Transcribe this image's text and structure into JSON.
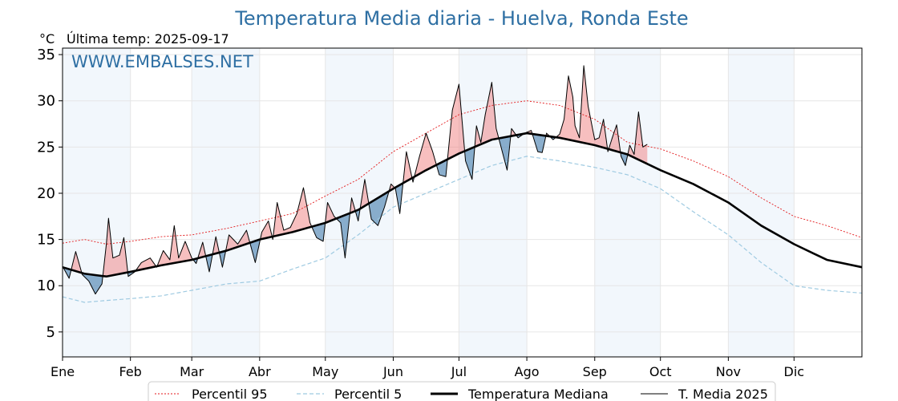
{
  "chart_data": {
    "type": "line",
    "title": "Temperatura Media diaria - Huelva, Ronda Este",
    "unit_label": "°C",
    "last_temp_label": "Última temp: 2025-09-17",
    "watermark": "WWW.EMBALSES.NET",
    "ylim": [
      2.3,
      35.7
    ],
    "yticks": [
      5,
      10,
      15,
      20,
      25,
      30,
      35
    ],
    "xlim": [
      0,
      365
    ],
    "months": [
      {
        "label": "Ene",
        "start": 0
      },
      {
        "label": "Feb",
        "start": 31
      },
      {
        "label": "Mar",
        "start": 59
      },
      {
        "label": "Abr",
        "start": 90
      },
      {
        "label": "May",
        "start": 120
      },
      {
        "label": "Jun",
        "start": 151
      },
      {
        "label": "Jul",
        "start": 181
      },
      {
        "label": "Ago",
        "start": 212
      },
      {
        "label": "Sep",
        "start": 243
      },
      {
        "label": "Oct",
        "start": 273
      },
      {
        "label": "Nov",
        "start": 304
      },
      {
        "label": "Dic",
        "start": 334
      }
    ],
    "shaded_month_bands": [
      [
        0,
        31
      ],
      [
        59,
        90
      ],
      [
        120,
        151
      ],
      [
        181,
        212
      ],
      [
        243,
        273
      ],
      [
        304,
        334
      ]
    ],
    "grid": true,
    "legend_position": "bottom-center",
    "colors": {
      "p95": "#e31a1c",
      "p5": "#9ecae1",
      "median": "#000000",
      "current": "#000000",
      "above_fill": "#f08080",
      "below_fill": "#5b8db8",
      "band": "#f2f7fc",
      "title": "#2e6fa3"
    },
    "series": [
      {
        "name": "Percentil 95",
        "key": "p95",
        "points": [
          [
            0,
            14.6
          ],
          [
            10,
            15
          ],
          [
            20,
            14.5
          ],
          [
            31,
            14.8
          ],
          [
            45,
            15.3
          ],
          [
            59,
            15.5
          ],
          [
            75,
            16.2
          ],
          [
            90,
            17
          ],
          [
            105,
            17.8
          ],
          [
            120,
            19.7
          ],
          [
            135,
            21.5
          ],
          [
            151,
            24.5
          ],
          [
            166,
            26.5
          ],
          [
            181,
            28.5
          ],
          [
            196,
            29.5
          ],
          [
            212,
            30
          ],
          [
            227,
            29.5
          ],
          [
            243,
            28
          ],
          [
            258,
            25.5
          ],
          [
            273,
            24.8
          ],
          [
            288,
            23.5
          ],
          [
            304,
            21.8
          ],
          [
            319,
            19.5
          ],
          [
            334,
            17.5
          ],
          [
            349,
            16.5
          ],
          [
            365,
            15.2
          ]
        ]
      },
      {
        "name": "Percentil 5",
        "key": "p5",
        "points": [
          [
            0,
            8.8
          ],
          [
            10,
            8.2
          ],
          [
            20,
            8.4
          ],
          [
            31,
            8.6
          ],
          [
            45,
            8.9
          ],
          [
            59,
            9.5
          ],
          [
            75,
            10.2
          ],
          [
            90,
            10.5
          ],
          [
            105,
            11.8
          ],
          [
            120,
            13
          ],
          [
            135,
            15.5
          ],
          [
            151,
            18.5
          ],
          [
            166,
            20
          ],
          [
            181,
            21.5
          ],
          [
            196,
            23
          ],
          [
            212,
            24
          ],
          [
            227,
            23.5
          ],
          [
            243,
            22.8
          ],
          [
            258,
            22
          ],
          [
            273,
            20.5
          ],
          [
            288,
            18
          ],
          [
            304,
            15.5
          ],
          [
            319,
            12.5
          ],
          [
            334,
            10
          ],
          [
            349,
            9.5
          ],
          [
            365,
            9.2
          ]
        ]
      },
      {
        "name": "Temperatura Mediana",
        "key": "median",
        "points": [
          [
            0,
            12
          ],
          [
            10,
            11.3
          ],
          [
            20,
            11
          ],
          [
            31,
            11.5
          ],
          [
            45,
            12.2
          ],
          [
            59,
            12.8
          ],
          [
            75,
            13.8
          ],
          [
            90,
            15
          ],
          [
            105,
            15.8
          ],
          [
            120,
            16.8
          ],
          [
            135,
            18.2
          ],
          [
            151,
            20.5
          ],
          [
            166,
            22.5
          ],
          [
            181,
            24.3
          ],
          [
            196,
            25.8
          ],
          [
            212,
            26.5
          ],
          [
            227,
            26
          ],
          [
            243,
            25.2
          ],
          [
            258,
            24.2
          ],
          [
            273,
            22.5
          ],
          [
            288,
            21
          ],
          [
            304,
            19
          ],
          [
            319,
            16.5
          ],
          [
            334,
            14.5
          ],
          [
            349,
            12.8
          ],
          [
            365,
            12
          ]
        ]
      },
      {
        "name": "T. Media 2025",
        "key": "current",
        "points": [
          [
            0,
            12.1
          ],
          [
            3,
            10.8
          ],
          [
            6,
            13.7
          ],
          [
            9,
            11.2
          ],
          [
            12,
            10.5
          ],
          [
            15,
            9.1
          ],
          [
            18,
            10.2
          ],
          [
            20,
            14.5
          ],
          [
            21,
            17.3
          ],
          [
            23,
            13
          ],
          [
            26,
            13.3
          ],
          [
            28,
            15.2
          ],
          [
            30,
            11
          ],
          [
            33,
            11.5
          ],
          [
            36,
            12.5
          ],
          [
            40,
            13
          ],
          [
            43,
            12
          ],
          [
            46,
            13.8
          ],
          [
            49,
            12.8
          ],
          [
            51,
            16.5
          ],
          [
            53,
            13
          ],
          [
            56,
            14.8
          ],
          [
            59,
            13
          ],
          [
            61,
            12.4
          ],
          [
            64,
            14.7
          ],
          [
            67,
            11.5
          ],
          [
            70,
            15.3
          ],
          [
            73,
            12
          ],
          [
            76,
            15.5
          ],
          [
            80,
            14.5
          ],
          [
            84,
            16
          ],
          [
            88,
            12.5
          ],
          [
            91,
            15.8
          ],
          [
            94,
            17
          ],
          [
            96,
            15
          ],
          [
            98,
            19
          ],
          [
            101,
            16
          ],
          [
            104,
            16.3
          ],
          [
            107,
            17.8
          ],
          [
            110,
            20.6
          ],
          [
            113,
            16.8
          ],
          [
            116,
            15.2
          ],
          [
            119,
            14.8
          ],
          [
            121,
            19
          ],
          [
            124,
            17.5
          ],
          [
            127,
            16.8
          ],
          [
            129,
            13
          ],
          [
            132,
            19.5
          ],
          [
            135,
            17
          ],
          [
            138,
            21.5
          ],
          [
            141,
            17.2
          ],
          [
            144,
            16.5
          ],
          [
            147,
            18.5
          ],
          [
            150,
            21
          ],
          [
            152,
            20.5
          ],
          [
            154,
            17.8
          ],
          [
            157,
            24.5
          ],
          [
            160,
            21.2
          ],
          [
            163,
            24
          ],
          [
            166,
            26.5
          ],
          [
            169,
            24.5
          ],
          [
            172,
            22
          ],
          [
            175,
            21.8
          ],
          [
            178,
            29
          ],
          [
            181,
            31.8
          ],
          [
            184,
            23.5
          ],
          [
            187,
            21.5
          ],
          [
            189,
            27.3
          ],
          [
            191,
            25.5
          ],
          [
            193,
            28.5
          ],
          [
            196,
            32
          ],
          [
            198,
            27
          ],
          [
            200,
            25.2
          ],
          [
            203,
            22.5
          ],
          [
            205,
            27
          ],
          [
            208,
            26
          ],
          [
            211,
            26.5
          ],
          [
            214,
            26.8
          ],
          [
            217,
            24.5
          ],
          [
            219,
            24.4
          ],
          [
            221,
            26.5
          ],
          [
            224,
            25.8
          ],
          [
            227,
            26.4
          ],
          [
            229,
            28
          ],
          [
            231,
            32.7
          ],
          [
            233,
            30.4
          ],
          [
            234,
            27.3
          ],
          [
            236,
            26
          ],
          [
            238,
            33.8
          ],
          [
            240,
            29.4
          ],
          [
            243,
            25.8
          ],
          [
            245,
            26
          ],
          [
            247,
            28
          ],
          [
            249,
            24.5
          ],
          [
            251,
            26
          ],
          [
            253,
            27.4
          ],
          [
            255,
            24
          ],
          [
            257,
            23
          ],
          [
            259,
            25.2
          ],
          [
            261,
            24.2
          ],
          [
            263,
            28.8
          ],
          [
            265,
            25
          ],
          [
            267,
            25.3
          ]
        ]
      }
    ],
    "legend": {
      "p95_label": "Percentil 95",
      "p5_label": "Percentil 5",
      "median_label": "Temperatura Mediana",
      "current_label": "T. Media 2025"
    }
  }
}
